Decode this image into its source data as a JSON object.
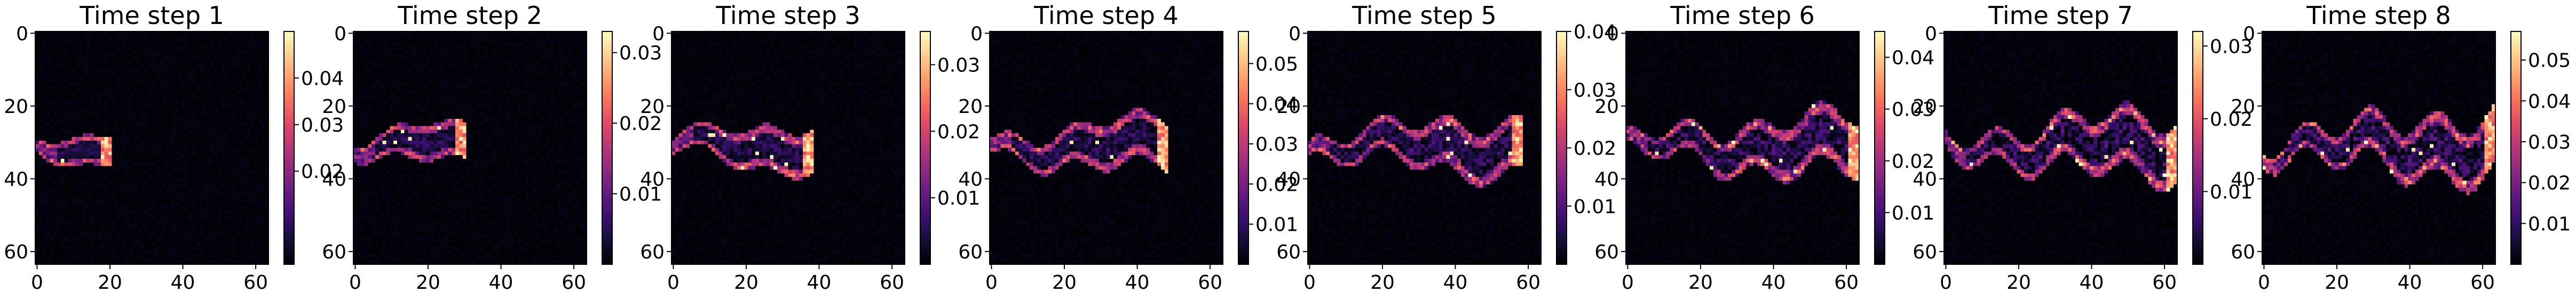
{
  "chart_data": [
    {
      "type": "heatmap",
      "title": "Time step 1",
      "field": "velocity-like field, jet from left at y≈31",
      "xlim": [
        0,
        63
      ],
      "ylim": [
        63,
        0
      ],
      "xticks": [
        0,
        20,
        40,
        60
      ],
      "yticks": [
        0,
        20,
        40,
        60
      ],
      "colormap": "magma",
      "colorbar": {
        "min": 0.0,
        "max": 0.05,
        "ticks": [
          0.02,
          0.03,
          0.04
        ]
      },
      "front_x": 20,
      "width": 8,
      "noise": 0.15
    },
    {
      "type": "heatmap",
      "title": "Time step 2",
      "xlim": [
        0,
        63
      ],
      "ylim": [
        63,
        0
      ],
      "xticks": [
        0,
        20,
        40,
        60
      ],
      "yticks": [
        0,
        20,
        40,
        60
      ],
      "colormap": "magma",
      "colorbar": {
        "min": 0.0,
        "max": 0.033,
        "ticks": [
          0.01,
          0.02,
          0.03
        ]
      },
      "front_x": 30,
      "width": 10,
      "noise": 0.25
    },
    {
      "type": "heatmap",
      "title": "Time step 3",
      "xlim": [
        0,
        63
      ],
      "ylim": [
        63,
        0
      ],
      "xticks": [
        0,
        20,
        40,
        60
      ],
      "yticks": [
        0,
        20,
        40,
        60
      ],
      "colormap": "magma",
      "colorbar": {
        "min": 0.0,
        "max": 0.035,
        "ticks": [
          0.01,
          0.02,
          0.03
        ]
      },
      "front_x": 38,
      "width": 12,
      "noise": 0.3
    },
    {
      "type": "heatmap",
      "title": "Time step 4",
      "xlim": [
        0,
        63
      ],
      "ylim": [
        63,
        0
      ],
      "xticks": [
        0,
        20,
        40,
        60
      ],
      "yticks": [
        0,
        20,
        40,
        60
      ],
      "colormap": "magma",
      "colorbar": {
        "min": 0.0,
        "max": 0.058,
        "ticks": [
          0.01,
          0.02,
          0.03,
          0.04,
          0.05
        ]
      },
      "front_x": 48,
      "width": 13,
      "noise": 0.35
    },
    {
      "type": "heatmap",
      "title": "Time step 5",
      "xlim": [
        0,
        63
      ],
      "ylim": [
        63,
        0
      ],
      "xticks": [
        0,
        20,
        40,
        60
      ],
      "yticks": [
        0,
        20,
        40,
        60
      ],
      "colormap": "magma",
      "colorbar": {
        "min": 0.0,
        "max": 0.04,
        "ticks": [
          0.01,
          0.02,
          0.03,
          0.04
        ]
      },
      "front_x": 58,
      "width": 14,
      "noise": 0.4
    },
    {
      "type": "heatmap",
      "title": "Time step 6",
      "xlim": [
        0,
        63
      ],
      "ylim": [
        63,
        0
      ],
      "xticks": [
        0,
        20,
        40,
        60
      ],
      "yticks": [
        0,
        20,
        40,
        60
      ],
      "colormap": "magma",
      "colorbar": {
        "min": 0.0,
        "max": 0.045,
        "ticks": [
          0.01,
          0.02,
          0.03,
          0.04
        ]
      },
      "front_x": 63,
      "width": 15,
      "noise": 0.45
    },
    {
      "type": "heatmap",
      "title": "Time step 7",
      "xlim": [
        0,
        63
      ],
      "ylim": [
        63,
        0
      ],
      "xticks": [
        0,
        20,
        40,
        60
      ],
      "yticks": [
        0,
        20,
        40,
        60
      ],
      "colormap": "magma",
      "colorbar": {
        "min": 0.0,
        "max": 0.032,
        "ticks": [
          0.01,
          0.02,
          0.03
        ]
      },
      "front_x": 63,
      "width": 16,
      "noise": 0.5
    },
    {
      "type": "heatmap",
      "title": "Time step 8",
      "xlim": [
        0,
        63
      ],
      "ylim": [
        63,
        0
      ],
      "xticks": [
        0,
        20,
        40,
        60
      ],
      "yticks": [
        0,
        20,
        40,
        60
      ],
      "colormap": "magma",
      "colorbar": {
        "min": 0.0,
        "max": 0.057,
        "ticks": [
          0.01,
          0.02,
          0.03,
          0.04,
          0.05
        ]
      },
      "front_x": 63,
      "width": 16,
      "noise": 0.55
    }
  ],
  "colors": {
    "background": "#000004",
    "low": "#000004",
    "high": "#fcfdbf"
  }
}
